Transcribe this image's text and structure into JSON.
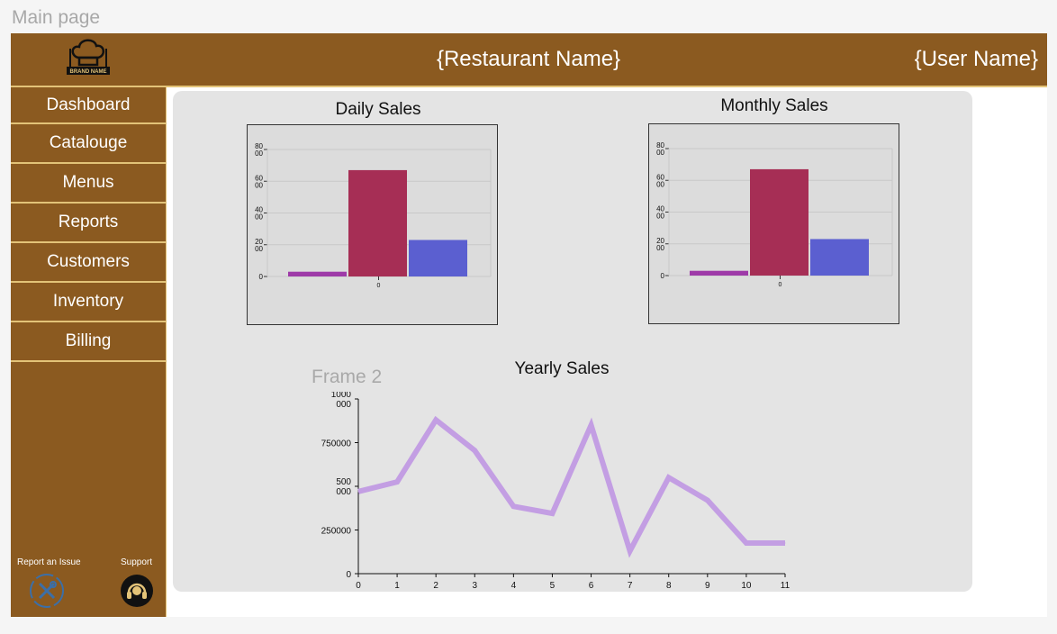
{
  "frame_label": "Main page",
  "header": {
    "restaurant_name": "{Restaurant Name}",
    "user_name": "{User Name}",
    "logo_text": "BRAND NAME"
  },
  "sidebar": {
    "items": [
      {
        "label": "Dashboard"
      },
      {
        "label": "Catalouge"
      },
      {
        "label": "Menus"
      },
      {
        "label": "Reports"
      },
      {
        "label": "Customers"
      },
      {
        "label": "Inventory"
      },
      {
        "label": "Billing"
      }
    ],
    "report_issue_label": "Report an Issue",
    "support_label": "Support",
    "report_issue_icon": "tools-icon",
    "support_icon": "headset-icon"
  },
  "frame2_label": "Frame 2",
  "colors": {
    "brand": "#8b5a20",
    "accent_border": "#e3c378",
    "bar1": "#9e3aa8",
    "bar2": "#a62e55",
    "bar3": "#5b5fd0",
    "line": "#c39ee3"
  },
  "chart_data": [
    {
      "type": "bar",
      "title": "Daily Sales",
      "categories": [
        "0"
      ],
      "series": [
        {
          "values": [
            300
          ]
        },
        {
          "values": [
            6700
          ]
        },
        {
          "values": [
            2300
          ]
        }
      ],
      "yticks": [
        {
          "top": "0",
          "bottom": ""
        },
        {
          "top": "20",
          "bottom": "00"
        },
        {
          "top": "40",
          "bottom": "00"
        },
        {
          "top": "60",
          "bottom": "00"
        },
        {
          "top": "80",
          "bottom": "00"
        }
      ],
      "ylim": [
        0,
        8000
      ]
    },
    {
      "type": "bar",
      "title": "Monthly Sales",
      "categories": [
        "0"
      ],
      "series": [
        {
          "values": [
            300
          ]
        },
        {
          "values": [
            6700
          ]
        },
        {
          "values": [
            2300
          ]
        }
      ],
      "yticks": [
        {
          "top": "0",
          "bottom": ""
        },
        {
          "top": "20",
          "bottom": "00"
        },
        {
          "top": "40",
          "bottom": "00"
        },
        {
          "top": "60",
          "bottom": "00"
        },
        {
          "top": "80",
          "bottom": "00"
        }
      ],
      "ylim": [
        0,
        8000
      ]
    },
    {
      "type": "line",
      "title": "Yearly Sales",
      "x": [
        0,
        1,
        2,
        3,
        4,
        5,
        6,
        7,
        8,
        9,
        10,
        11
      ],
      "values": [
        470000,
        525000,
        880000,
        705000,
        385000,
        345000,
        850000,
        130000,
        550000,
        420000,
        175000,
        175000
      ],
      "ylim": [
        0,
        1000000
      ],
      "yticks": [
        {
          "top": "0",
          "bottom": ""
        },
        {
          "top": "250000",
          "bottom": ""
        },
        {
          "top": "500",
          "bottom": "000"
        },
        {
          "top": "750000",
          "bottom": ""
        },
        {
          "top": "1000",
          "bottom": "000"
        }
      ]
    }
  ]
}
